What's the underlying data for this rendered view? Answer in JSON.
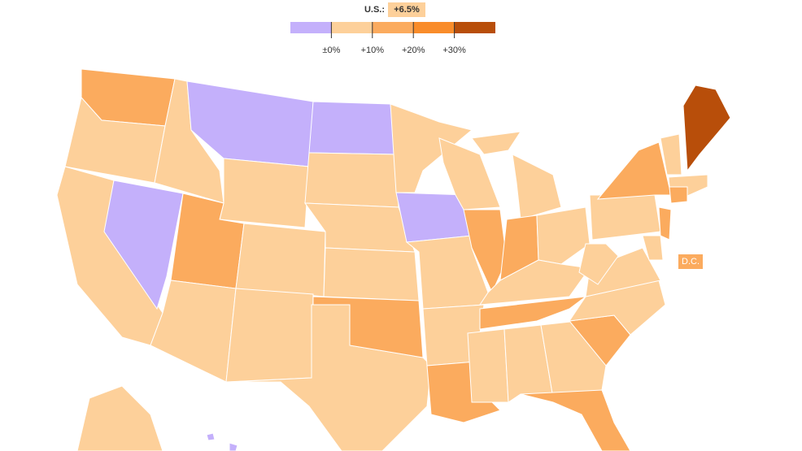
{
  "header": {
    "us_label": "U.S.:",
    "us_value": {
      "value": 6.5,
      "label": "+6.5%"
    }
  },
  "legend": {
    "colors": [
      "#c4b0fb",
      "#fdd09a",
      "#fbab5e",
      "#f98c2a",
      "#b84e0a"
    ],
    "lim": [
      -10,
      40
    ],
    "ticks": [
      {
        "value": 0,
        "label": "±0%"
      },
      {
        "value": 10,
        "label": "+10%"
      },
      {
        "value": 20,
        "label": "+20%"
      },
      {
        "value": 30,
        "label": "+30%"
      }
    ]
  },
  "dc_label": "D.C."
}
